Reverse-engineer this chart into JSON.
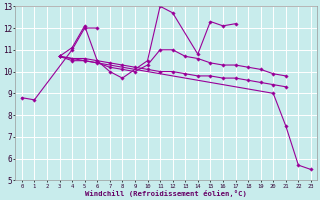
{
  "xlabel": "Windchill (Refroidissement éolien,°C)",
  "bg_color": "#c8ecec",
  "line_color": "#990099",
  "grid_color": "#ffffff",
  "xlim": [
    -0.5,
    23.5
  ],
  "ylim": [
    5,
    13
  ],
  "xticks": [
    0,
    1,
    2,
    3,
    4,
    5,
    6,
    7,
    8,
    9,
    10,
    11,
    12,
    13,
    14,
    15,
    16,
    17,
    18,
    19,
    20,
    21,
    22,
    23
  ],
  "yticks": [
    5,
    6,
    7,
    8,
    9,
    10,
    11,
    12,
    13
  ],
  "lines": [
    {
      "x": [
        0,
        1,
        4,
        5,
        6
      ],
      "y": [
        8.8,
        8.7,
        11.0,
        12.0,
        12.0
      ]
    },
    {
      "x": [
        3,
        4,
        5,
        6,
        7,
        8,
        10,
        11,
        12,
        14,
        15,
        16,
        17
      ],
      "y": [
        10.7,
        11.1,
        12.1,
        10.5,
        10.0,
        9.7,
        10.5,
        13.0,
        12.7,
        10.8,
        12.3,
        12.1,
        12.2
      ]
    },
    {
      "x": [
        3,
        4,
        5,
        6,
        7,
        8,
        9,
        10,
        11,
        12,
        13,
        14,
        15,
        16,
        17,
        18,
        19,
        20,
        21
      ],
      "y": [
        10.7,
        10.5,
        10.5,
        10.4,
        10.2,
        10.1,
        10.0,
        10.3,
        11.0,
        11.0,
        10.7,
        10.6,
        10.4,
        10.3,
        10.3,
        10.2,
        10.1,
        9.9,
        9.8
      ]
    },
    {
      "x": [
        3,
        4,
        5,
        6,
        7,
        8,
        9,
        10,
        11,
        12,
        13,
        14,
        15,
        16,
        17,
        18,
        19,
        20,
        21
      ],
      "y": [
        10.7,
        10.6,
        10.6,
        10.5,
        10.4,
        10.3,
        10.2,
        10.1,
        10.0,
        10.0,
        9.9,
        9.8,
        9.8,
        9.7,
        9.7,
        9.6,
        9.5,
        9.4,
        9.3
      ]
    },
    {
      "x": [
        3,
        20,
        21,
        22,
        23
      ],
      "y": [
        10.7,
        9.0,
        7.5,
        5.7,
        5.5
      ]
    }
  ]
}
